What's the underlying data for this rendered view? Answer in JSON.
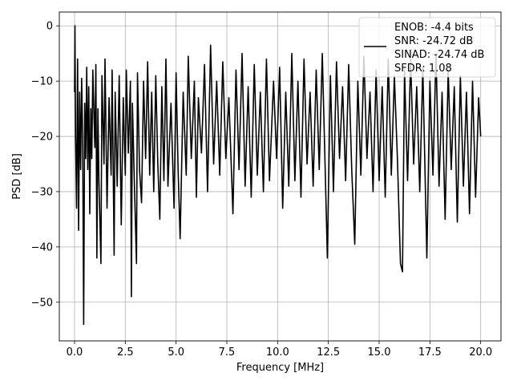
{
  "chart_data": {
    "type": "line",
    "xlabel": "Frequency [MHz]",
    "ylabel": "PSD [dB]",
    "xlim": [
      -0.75,
      21.0
    ],
    "ylim": [
      -57.0,
      2.5
    ],
    "grid": true,
    "x_ticks": [
      0.0,
      2.5,
      5.0,
      7.5,
      10.0,
      12.5,
      15.0,
      17.5,
      20.0
    ],
    "x_tick_labels": [
      "0.0",
      "2.5",
      "5.0",
      "7.5",
      "10.0",
      "12.5",
      "15.0",
      "17.5",
      "20.0"
    ],
    "y_ticks": [
      0,
      -10,
      -20,
      -30,
      -40,
      -50
    ],
    "y_tick_labels": [
      "0",
      "−10",
      "−20",
      "−30",
      "−40",
      "−50"
    ],
    "line_color": "#000000",
    "legend": {
      "position": "top-right",
      "entries": [
        "ENOB: -4.4 bits",
        "SNR: -24.72 dB",
        "SINAD: -24.74 dB",
        "SFDR: 1.08"
      ]
    },
    "series": [
      {
        "points": [
          [
            0.0,
            -12.0
          ],
          [
            0.02,
            0.0
          ],
          [
            0.05,
            -20.0
          ],
          [
            0.1,
            -33.0
          ],
          [
            0.15,
            -6.0
          ],
          [
            0.2,
            -37.0
          ],
          [
            0.25,
            -12.0
          ],
          [
            0.3,
            -26.0
          ],
          [
            0.35,
            -9.5
          ],
          [
            0.4,
            -20.0
          ],
          [
            0.45,
            -54.0
          ],
          [
            0.5,
            -14.0
          ],
          [
            0.55,
            -24.0
          ],
          [
            0.6,
            -7.5
          ],
          [
            0.65,
            -26.0
          ],
          [
            0.7,
            -11.0
          ],
          [
            0.75,
            -34.0
          ],
          [
            0.8,
            -15.0
          ],
          [
            0.85,
            -24.0
          ],
          [
            0.9,
            -8.0
          ],
          [
            1.0,
            -22.0
          ],
          [
            1.05,
            -7.0
          ],
          [
            1.1,
            -42.0
          ],
          [
            1.15,
            -15.0
          ],
          [
            1.2,
            -28.0
          ],
          [
            1.3,
            -43.0
          ],
          [
            1.35,
            -9.0
          ],
          [
            1.45,
            -25.0
          ],
          [
            1.5,
            -6.0
          ],
          [
            1.6,
            -33.0
          ],
          [
            1.7,
            -13.0
          ],
          [
            1.8,
            -27.0
          ],
          [
            1.85,
            -8.0
          ],
          [
            1.95,
            -41.5
          ],
          [
            2.0,
            -12.0
          ],
          [
            2.1,
            -29.0
          ],
          [
            2.2,
            -9.0
          ],
          [
            2.3,
            -36.0
          ],
          [
            2.4,
            -13.0
          ],
          [
            2.5,
            -27.0
          ],
          [
            2.55,
            -8.0
          ],
          [
            2.65,
            -23.0
          ],
          [
            2.75,
            -10.0
          ],
          [
            2.8,
            -49.0
          ],
          [
            2.85,
            -14.0
          ],
          [
            2.95,
            -29.0
          ],
          [
            3.05,
            -43.0
          ],
          [
            3.1,
            -8.5
          ],
          [
            3.2,
            -26.0
          ],
          [
            3.3,
            -32.0
          ],
          [
            3.4,
            -10.0
          ],
          [
            3.5,
            -24.0
          ],
          [
            3.6,
            -6.5
          ],
          [
            3.7,
            -27.0
          ],
          [
            3.8,
            -12.0
          ],
          [
            3.9,
            -30.0
          ],
          [
            4.0,
            -9.0
          ],
          [
            4.1,
            -25.0
          ],
          [
            4.2,
            -35.0
          ],
          [
            4.3,
            -11.0
          ],
          [
            4.4,
            -28.0
          ],
          [
            4.5,
            -6.0
          ],
          [
            4.6,
            -29.0
          ],
          [
            4.75,
            -14.0
          ],
          [
            4.9,
            -33.0
          ],
          [
            5.0,
            -8.5
          ],
          [
            5.1,
            -26.0
          ],
          [
            5.2,
            -38.5
          ],
          [
            5.35,
            -12.0
          ],
          [
            5.5,
            -27.0
          ],
          [
            5.6,
            -5.5
          ],
          [
            5.75,
            -24.0
          ],
          [
            5.9,
            -10.0
          ],
          [
            6.0,
            -31.0
          ],
          [
            6.1,
            -13.0
          ],
          [
            6.25,
            -23.0
          ],
          [
            6.4,
            -7.0
          ],
          [
            6.55,
            -30.0
          ],
          [
            6.7,
            -3.5
          ],
          [
            6.85,
            -25.0
          ],
          [
            7.0,
            -10.0
          ],
          [
            7.15,
            -27.0
          ],
          [
            7.3,
            -6.5
          ],
          [
            7.45,
            -24.0
          ],
          [
            7.6,
            -13.0
          ],
          [
            7.8,
            -34.0
          ],
          [
            7.95,
            -8.0
          ],
          [
            8.1,
            -26.0
          ],
          [
            8.25,
            -5.0
          ],
          [
            8.4,
            -29.0
          ],
          [
            8.55,
            -11.0
          ],
          [
            8.7,
            -31.0
          ],
          [
            8.85,
            -7.0
          ],
          [
            9.0,
            -27.0
          ],
          [
            9.15,
            -12.0
          ],
          [
            9.3,
            -30.0
          ],
          [
            9.45,
            -6.0
          ],
          [
            9.6,
            -28.0
          ],
          [
            9.8,
            -10.0
          ],
          [
            9.95,
            -24.0
          ],
          [
            10.1,
            -7.5
          ],
          [
            10.25,
            -33.0
          ],
          [
            10.4,
            -12.0
          ],
          [
            10.55,
            -29.0
          ],
          [
            10.7,
            -5.0
          ],
          [
            10.85,
            -28.0
          ],
          [
            11.0,
            -10.0
          ],
          [
            11.15,
            -31.0
          ],
          [
            11.3,
            -6.0
          ],
          [
            11.45,
            -25.0
          ],
          [
            11.6,
            -12.0
          ],
          [
            11.75,
            -29.0
          ],
          [
            11.9,
            -8.0
          ],
          [
            12.05,
            -26.0
          ],
          [
            12.2,
            -5.0
          ],
          [
            12.35,
            -27.0
          ],
          [
            12.45,
            -42.0
          ],
          [
            12.6,
            -9.0
          ],
          [
            12.75,
            -30.0
          ],
          [
            12.9,
            -6.5
          ],
          [
            13.05,
            -24.0
          ],
          [
            13.2,
            -11.0
          ],
          [
            13.35,
            -28.0
          ],
          [
            13.5,
            -7.0
          ],
          [
            13.65,
            -26.0
          ],
          [
            13.8,
            -39.5
          ],
          [
            13.95,
            -10.0
          ],
          [
            14.1,
            -27.0
          ],
          [
            14.25,
            -5.5
          ],
          [
            14.4,
            -24.0
          ],
          [
            14.55,
            -12.0
          ],
          [
            14.7,
            -30.0
          ],
          [
            14.85,
            -8.0
          ],
          [
            15.0,
            -28.0
          ],
          [
            15.15,
            -11.0
          ],
          [
            15.3,
            -31.0
          ],
          [
            15.45,
            -6.0
          ],
          [
            15.6,
            -27.0
          ],
          [
            15.75,
            -9.0
          ],
          [
            15.9,
            -24.0
          ],
          [
            16.05,
            -43.0
          ],
          [
            16.15,
            -44.5
          ],
          [
            16.25,
            -8.0
          ],
          [
            16.4,
            -28.0
          ],
          [
            16.55,
            -6.0
          ],
          [
            16.7,
            -25.0
          ],
          [
            16.85,
            -11.0
          ],
          [
            17.0,
            -30.0
          ],
          [
            17.15,
            -7.5
          ],
          [
            17.35,
            -42.0
          ],
          [
            17.5,
            -10.0
          ],
          [
            17.65,
            -27.0
          ],
          [
            17.8,
            -5.0
          ],
          [
            17.95,
            -29.0
          ],
          [
            18.1,
            -12.0
          ],
          [
            18.25,
            -35.0
          ],
          [
            18.4,
            -8.0
          ],
          [
            18.55,
            -26.0
          ],
          [
            18.7,
            -11.0
          ],
          [
            18.85,
            -35.5
          ],
          [
            19.0,
            -9.0
          ],
          [
            19.15,
            -29.0
          ],
          [
            19.3,
            -12.0
          ],
          [
            19.45,
            -34.0
          ],
          [
            19.6,
            -10.0
          ],
          [
            19.75,
            -31.0
          ],
          [
            19.9,
            -13.0
          ],
          [
            20.0,
            -20.0
          ]
        ]
      }
    ]
  }
}
